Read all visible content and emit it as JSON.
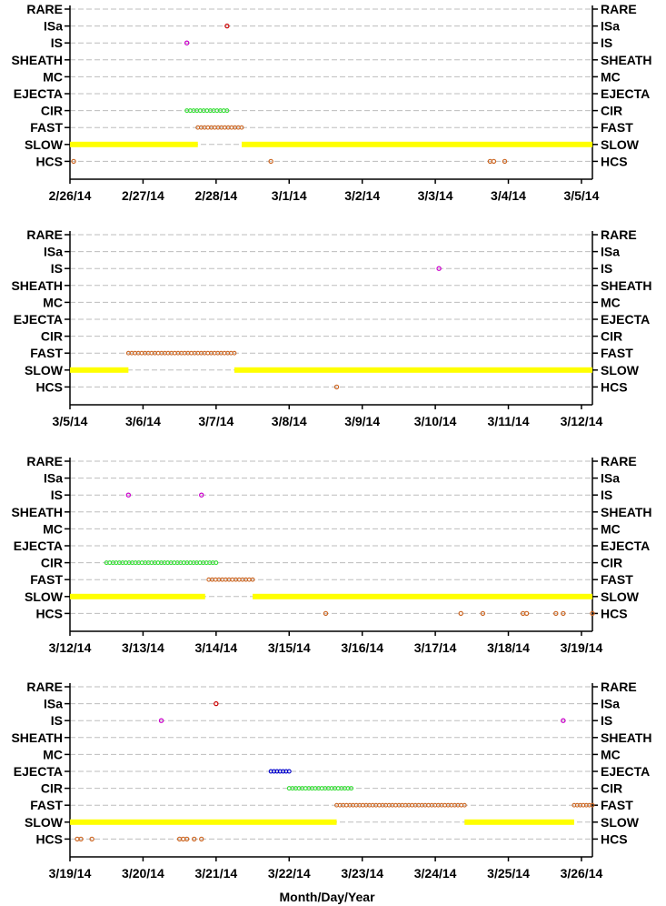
{
  "figure": {
    "xlabel": "Month/Day/Year"
  },
  "chart_data": {
    "type": "scatter",
    "categories": [
      "RARE",
      "ISa",
      "IS",
      "SHEATH",
      "MC",
      "EJECTA",
      "CIR",
      "FAST",
      "SLOW",
      "HCS"
    ],
    "category_colors": {
      "RARE": "#000000",
      "ISa": "#cc0000",
      "IS": "#cc00cc",
      "SHEATH": "#000000",
      "MC": "#000000",
      "EJECTA": "#0000cc",
      "CIR": "#33dd33",
      "FAST": "#cc6622",
      "SLOW": "#ffff00",
      "HCS": "#cc6622"
    },
    "grid": true,
    "panels": [
      {
        "xlim": [
          0,
          7.15
        ],
        "xticks": [
          "2/26/14",
          "2/27/14",
          "2/28/14",
          "3/1/14",
          "3/2/14",
          "3/3/14",
          "3/4/14",
          "3/5/14"
        ],
        "series": [
          {
            "name": "SLOW",
            "intervals": [
              [
                0.0,
                1.75
              ],
              [
                2.35,
                7.15
              ]
            ]
          },
          {
            "name": "FAST",
            "intervals": [
              [
                1.75,
                2.35
              ]
            ]
          },
          {
            "name": "CIR",
            "intervals": [
              [
                1.6,
                2.15
              ]
            ]
          },
          {
            "name": "ISa",
            "points": [
              2.15
            ]
          },
          {
            "name": "IS",
            "points": [
              1.6
            ]
          },
          {
            "name": "HCS",
            "points": [
              0.05,
              2.75,
              5.75,
              5.8,
              5.95
            ]
          }
        ]
      },
      {
        "xlim": [
          0,
          7.15
        ],
        "xticks": [
          "3/5/14",
          "3/6/14",
          "3/7/14",
          "3/8/14",
          "3/9/14",
          "3/10/14",
          "3/11/14",
          "3/12/14"
        ],
        "series": [
          {
            "name": "SLOW",
            "intervals": [
              [
                0.0,
                0.8
              ],
              [
                2.25,
                7.15
              ]
            ]
          },
          {
            "name": "FAST",
            "intervals": [
              [
                0.8,
                2.25
              ]
            ]
          },
          {
            "name": "IS",
            "points": [
              5.05
            ]
          },
          {
            "name": "HCS",
            "points": [
              3.65
            ]
          }
        ]
      },
      {
        "xlim": [
          0,
          7.15
        ],
        "xticks": [
          "3/12/14",
          "3/13/14",
          "3/14/14",
          "3/15/14",
          "3/16/14",
          "3/17/14",
          "3/18/14",
          "3/19/14"
        ],
        "series": [
          {
            "name": "SLOW",
            "intervals": [
              [
                0.0,
                1.85
              ],
              [
                2.5,
                7.15
              ]
            ]
          },
          {
            "name": "FAST",
            "intervals": [
              [
                1.9,
                2.5
              ]
            ]
          },
          {
            "name": "CIR",
            "intervals": [
              [
                0.5,
                2.0
              ]
            ]
          },
          {
            "name": "IS",
            "points": [
              0.8,
              1.8
            ]
          },
          {
            "name": "HCS",
            "points": [
              3.5,
              5.35,
              5.65,
              6.2,
              6.25,
              6.65,
              6.75,
              7.15
            ]
          }
        ]
      },
      {
        "xlim": [
          0,
          7.15
        ],
        "xticks": [
          "3/19/14",
          "3/20/14",
          "3/21/14",
          "3/22/14",
          "3/23/14",
          "3/24/14",
          "3/25/14",
          "3/26/14"
        ],
        "series": [
          {
            "name": "SLOW",
            "intervals": [
              [
                0.0,
                3.65
              ],
              [
                5.4,
                6.9
              ]
            ]
          },
          {
            "name": "FAST",
            "intervals": [
              [
                3.65,
                5.4
              ],
              [
                6.9,
                7.15
              ]
            ]
          },
          {
            "name": "CIR",
            "intervals": [
              [
                3.0,
                3.85
              ]
            ]
          },
          {
            "name": "EJECTA",
            "intervals": [
              [
                2.75,
                3.0
              ]
            ]
          },
          {
            "name": "ISa",
            "points": [
              2.0
            ]
          },
          {
            "name": "IS",
            "points": [
              1.25,
              6.75
            ]
          },
          {
            "name": "HCS",
            "points": [
              0.1,
              0.15,
              0.3,
              1.5,
              1.55,
              1.6,
              1.7,
              1.8
            ]
          }
        ]
      }
    ]
  }
}
